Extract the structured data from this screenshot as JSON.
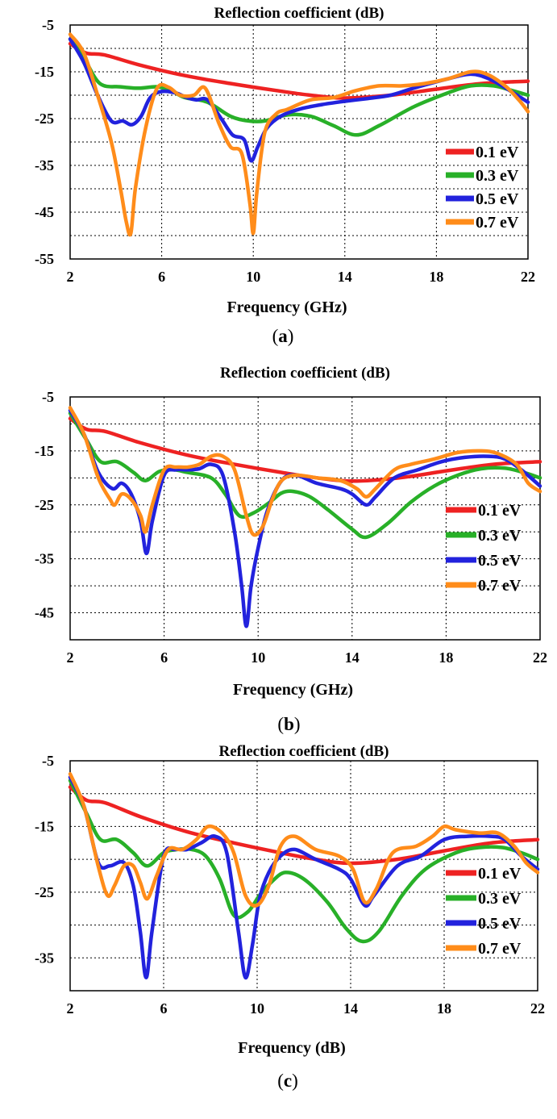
{
  "colors": {
    "0.1 eV": "#ee2222",
    "0.3 eV": "#28b028",
    "0.5 eV": "#2222dd",
    "0.7 eV": "#ff8c1a"
  },
  "chart_data": [
    {
      "type": "line",
      "caption": "a",
      "title": "Reflection coefficient (dB)",
      "xlabel": "Frequency (GHz)",
      "ylabel": "",
      "xlim": [
        2,
        22
      ],
      "ylim": [
        -55,
        -5
      ],
      "xticks": [
        "2",
        "6",
        "10",
        "14",
        "18",
        "22"
      ],
      "yticks": [
        "-5",
        "-15",
        "-25",
        "-35",
        "-45",
        "-55"
      ],
      "legend": [
        "0.1 eV",
        "0.3 eV",
        "0.5 eV",
        "0.7 eV"
      ],
      "series": [
        {
          "name": "0.1 eV",
          "x": [
            2,
            2.7,
            3.5,
            5,
            7,
            9,
            11,
            12.5,
            14,
            16,
            18,
            20,
            22
          ],
          "y": [
            -9,
            -11,
            -11.4,
            -13.5,
            -15.8,
            -17.5,
            -19,
            -20,
            -20.6,
            -20,
            -18.7,
            -17.5,
            -17
          ]
        },
        {
          "name": "0.3 eV",
          "x": [
            2,
            2.6,
            3.3,
            4.2,
            5,
            5.8,
            6.4,
            7,
            8,
            9,
            9.8,
            10.5,
            11.5,
            12.5,
            13.5,
            14.5,
            15.5,
            17,
            18.5,
            19.5,
            20.5,
            21.3,
            22
          ],
          "y": [
            -8,
            -12,
            -17.5,
            -18.2,
            -18.5,
            -18.2,
            -19,
            -20.5,
            -21.5,
            -24.5,
            -25.5,
            -25.5,
            -24.2,
            -24.5,
            -26.5,
            -28.5,
            -26.5,
            -22.5,
            -19.5,
            -18,
            -18,
            -19,
            -20
          ]
        },
        {
          "name": "0.5 eV",
          "x": [
            2,
            2.6,
            3.2,
            3.8,
            4.3,
            4.7,
            5.1,
            5.5,
            6,
            6.6,
            7.1,
            7.5,
            8,
            8.6,
            9.1,
            9.6,
            9.9,
            10.2,
            10.6,
            11.2,
            12,
            13,
            14,
            15,
            16,
            17,
            18.5,
            19.5,
            20.3,
            21.2,
            22
          ],
          "y": [
            -8,
            -13,
            -20,
            -25.5,
            -25.5,
            -26.3,
            -24.5,
            -20.5,
            -19.2,
            -19.5,
            -20.5,
            -21,
            -21,
            -25,
            -28.5,
            -29.5,
            -34,
            -31,
            -27,
            -24.5,
            -23,
            -22,
            -21.3,
            -20.7,
            -20,
            -18.5,
            -16.5,
            -15.5,
            -16.5,
            -19,
            -21.5
          ]
        },
        {
          "name": "0.7 eV",
          "x": [
            2,
            2.6,
            3.2,
            3.8,
            4.2,
            4.45,
            4.65,
            4.85,
            5.3,
            5.8,
            6.3,
            6.8,
            7.4,
            7.9,
            8.5,
            9,
            9.5,
            9.85,
            10,
            10.15,
            10.5,
            11,
            11.5,
            12.5,
            13.5,
            14.5,
            15.5,
            16.5,
            17.5,
            18.5,
            19.5,
            20.2,
            21,
            21.6,
            22
          ],
          "y": [
            -7,
            -11,
            -20,
            -30,
            -40,
            -47,
            -49.5,
            -40,
            -27,
            -18.5,
            -18.3,
            -20,
            -20,
            -18.5,
            -26,
            -31,
            -32.5,
            -43,
            -49.5,
            -41,
            -28,
            -24,
            -23,
            -21,
            -20.5,
            -19,
            -18,
            -18,
            -17.5,
            -16.5,
            -15,
            -15.5,
            -18,
            -21,
            -23.5
          ]
        }
      ]
    },
    {
      "type": "line",
      "caption": "b",
      "title": "Reflection coefficient (dB)",
      "xlabel": "Frequency (GHz)",
      "ylabel": "",
      "xlim": [
        2,
        22
      ],
      "ylim": [
        -50,
        -5
      ],
      "xticks": [
        "2",
        "6",
        "10",
        "14",
        "18",
        "22"
      ],
      "yticks": [
        "-5",
        "-15",
        "-25",
        "-35",
        "-45"
      ],
      "legend": [
        "0.1 eV",
        "0.3 eV",
        "0.5 eV",
        "0.7 eV"
      ],
      "series": [
        {
          "name": "0.1 eV",
          "x": [
            2,
            2.7,
            3.5,
            5,
            7,
            9,
            11,
            12.5,
            14,
            16,
            18,
            20,
            22
          ],
          "y": [
            -9,
            -11,
            -11.4,
            -13.5,
            -15.8,
            -17.5,
            -19,
            -20,
            -20.6,
            -20,
            -18.7,
            -17.5,
            -17
          ]
        },
        {
          "name": "0.3 eV",
          "x": [
            2,
            2.7,
            3.3,
            4,
            4.7,
            5.2,
            5.8,
            6.4,
            7,
            8,
            8.6,
            9.2,
            9.8,
            10.5,
            11,
            11.5,
            12.2,
            13,
            14,
            14.6,
            15.5,
            16.5,
            17.5,
            18.5,
            19.5,
            20.5,
            21.3,
            22
          ],
          "y": [
            -8,
            -13,
            -17,
            -17,
            -19,
            -20.5,
            -18.8,
            -18.5,
            -19,
            -20,
            -23,
            -27,
            -26.5,
            -24.5,
            -22.8,
            -22.5,
            -23.5,
            -26,
            -29.5,
            -31,
            -28.5,
            -24.5,
            -21.5,
            -19.5,
            -18.3,
            -18.2,
            -19,
            -20
          ]
        },
        {
          "name": "0.5 eV",
          "x": [
            2,
            2.6,
            3.2,
            3.8,
            4.2,
            4.6,
            5,
            5.25,
            5.5,
            6,
            6.5,
            7,
            7.5,
            8,
            8.5,
            9,
            9.3,
            9.5,
            9.7,
            10,
            10.4,
            11,
            11.6,
            12.5,
            13.5,
            14,
            14.6,
            15,
            15.8,
            16.8,
            17.8,
            18.8,
            19.8,
            20.5,
            21.2,
            22
          ],
          "y": [
            -7.5,
            -12,
            -19,
            -22,
            -21,
            -23,
            -28,
            -34,
            -28,
            -19.5,
            -18.5,
            -18.5,
            -18.3,
            -17.5,
            -19.5,
            -30,
            -40,
            -47.5,
            -40,
            -33,
            -26,
            -20.5,
            -19.5,
            -21,
            -22,
            -23,
            -25,
            -23.5,
            -20,
            -18.5,
            -17,
            -16.2,
            -16,
            -16.5,
            -18.5,
            -21.5
          ]
        },
        {
          "name": "0.7 eV",
          "x": [
            2,
            2.6,
            3.2,
            3.7,
            3.9,
            4.2,
            4.6,
            5,
            5.2,
            5.5,
            6,
            6.5,
            7,
            7.5,
            8,
            8.5,
            9,
            9.5,
            9.8,
            10.2,
            10.6,
            11,
            11.6,
            12.5,
            13.5,
            14.2,
            14.6,
            15,
            15.8,
            16.5,
            17.5,
            18.5,
            19.5,
            20.2,
            21,
            21.5,
            22
          ],
          "y": [
            -7,
            -12,
            -20,
            -24,
            -25,
            -23,
            -24,
            -27,
            -30,
            -25,
            -18.5,
            -18,
            -18,
            -17.5,
            -16,
            -16,
            -18.5,
            -27,
            -30.5,
            -29,
            -24,
            -20.5,
            -19.5,
            -20,
            -20.5,
            -22,
            -23.5,
            -22,
            -18.5,
            -17.5,
            -16.5,
            -15.3,
            -15,
            -15.5,
            -17.5,
            -21,
            -22.5
          ]
        }
      ]
    },
    {
      "type": "line",
      "caption": "c",
      "title": "Reflection coefficient (dB)",
      "xlabel": "Frequency (dB)",
      "ylabel": "",
      "xlim": [
        2,
        22
      ],
      "ylim": [
        -40,
        -5
      ],
      "xticks": [
        "2",
        "6",
        "10",
        "14",
        "18",
        "22"
      ],
      "yticks": [
        "-5",
        "-15",
        "-25",
        "-35"
      ],
      "legend": [
        "0.1 eV",
        "0.3 eV",
        "0.5 eV",
        "0.7 eV"
      ],
      "series": [
        {
          "name": "0.1 eV",
          "x": [
            2,
            2.7,
            3.5,
            5,
            7,
            9,
            11,
            12.5,
            14,
            16,
            18,
            20,
            22
          ],
          "y": [
            -9,
            -11,
            -11.4,
            -13.5,
            -15.8,
            -17.5,
            -19,
            -20,
            -20.6,
            -20,
            -18.7,
            -17.5,
            -17
          ]
        },
        {
          "name": "0.3 eV",
          "x": [
            2,
            2.7,
            3.3,
            4,
            4.7,
            5.3,
            6,
            6.6,
            7.2,
            7.8,
            8.4,
            9,
            9.6,
            10.1,
            10.6,
            11.2,
            12,
            13,
            13.8,
            14.5,
            15.2,
            16.2,
            17.2,
            18.5,
            19.5,
            20.5,
            21.3,
            22
          ],
          "y": [
            -8,
            -13,
            -17,
            -17,
            -19,
            -21,
            -19,
            -18.5,
            -18.5,
            -19.5,
            -23,
            -28.5,
            -28,
            -25.5,
            -23.5,
            -22,
            -23,
            -26.5,
            -30.5,
            -32.5,
            -31,
            -25.5,
            -21.5,
            -19,
            -18.2,
            -18.2,
            -19,
            -20
          ]
        },
        {
          "name": "0.5 eV",
          "x": [
            2,
            2.6,
            3.2,
            3.7,
            4.3,
            4.7,
            5,
            5.25,
            5.5,
            6,
            6.5,
            7,
            7.6,
            8.2,
            8.7,
            9.2,
            9.5,
            9.8,
            10.1,
            10.5,
            11,
            11.6,
            12.5,
            13.5,
            14,
            14.6,
            15,
            16,
            17,
            18,
            19,
            20,
            20.6,
            21.3,
            22
          ],
          "y": [
            -7.5,
            -12,
            -20.5,
            -21,
            -20.5,
            -24,
            -31,
            -38,
            -31,
            -19.5,
            -18.5,
            -18.5,
            -17.5,
            -16.5,
            -19,
            -31,
            -38,
            -33,
            -26,
            -22,
            -19.5,
            -18.5,
            -20,
            -21.5,
            -23,
            -27,
            -25.5,
            -21,
            -19.5,
            -17,
            -16.5,
            -16.5,
            -17,
            -19.5,
            -21.5
          ]
        },
        {
          "name": "0.7 eV",
          "x": [
            2,
            2.6,
            3.2,
            3.6,
            3.9,
            4.3,
            4.7,
            5,
            5.3,
            5.7,
            6.2,
            6.8,
            7.4,
            7.9,
            8.5,
            9,
            9.5,
            10,
            10.5,
            11,
            11.6,
            12.5,
            13.5,
            14.1,
            14.6,
            15.1,
            15.8,
            16.8,
            17.5,
            18,
            18.5,
            19.5,
            20.3,
            21,
            21.5,
            22
          ],
          "y": [
            -7,
            -12,
            -21,
            -25.5,
            -24,
            -21,
            -21,
            -23.5,
            -26,
            -22.5,
            -18.5,
            -18.5,
            -17,
            -15,
            -16,
            -19,
            -25.5,
            -27,
            -24,
            -18,
            -16.5,
            -18.5,
            -19.5,
            -21.5,
            -26.5,
            -24.5,
            -19,
            -18,
            -16.5,
            -15,
            -15.5,
            -16,
            -16,
            -18,
            -20.5,
            -22
          ]
        }
      ]
    }
  ]
}
